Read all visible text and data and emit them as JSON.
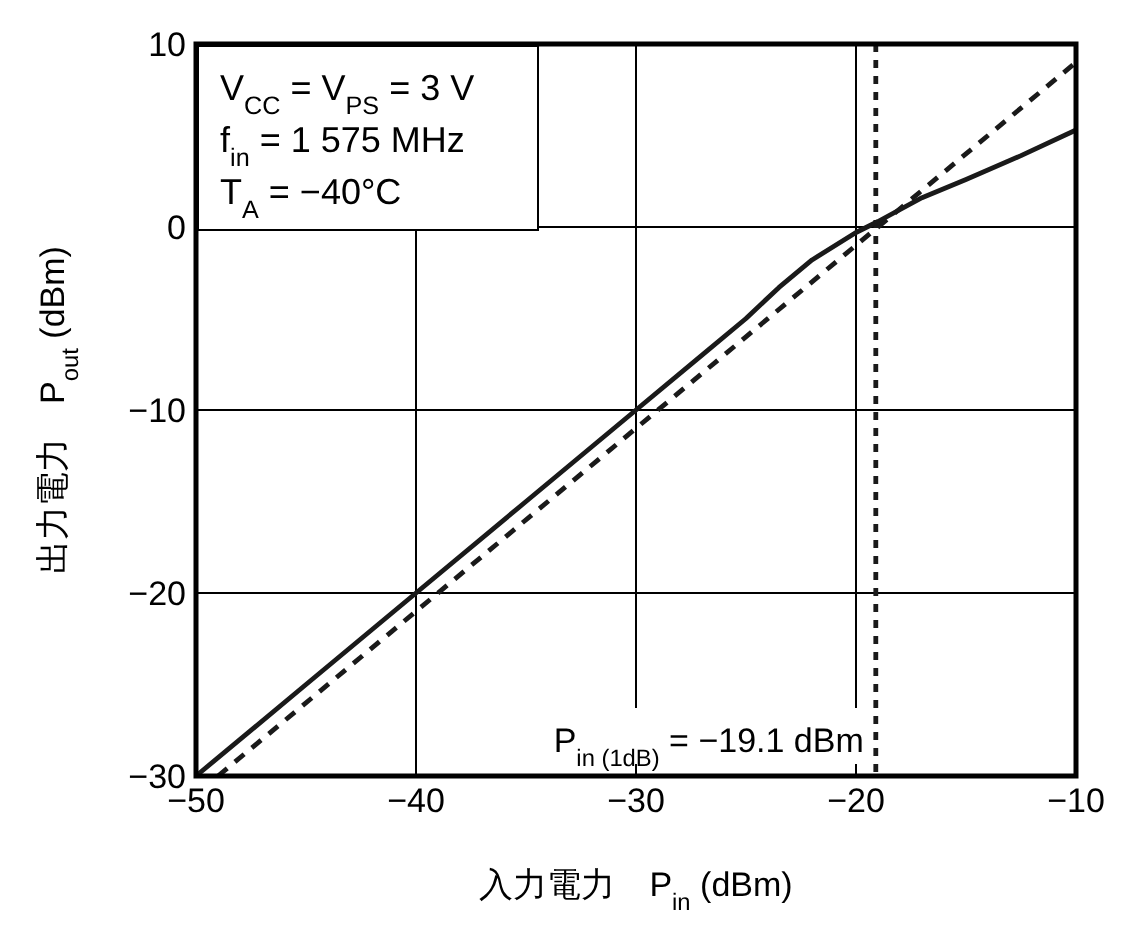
{
  "chart_data": {
    "type": "line",
    "xlabel": "入力電力　P$_{in}$ (dBm)",
    "ylabel": "出力電力　P$_{out}$ (dBm)",
    "xlim": [
      -50,
      -10
    ],
    "ylim": [
      -30,
      10
    ],
    "xticks": [
      -50,
      -40,
      -30,
      -20,
      -10
    ],
    "yticks": [
      -30,
      -20,
      -10,
      0,
      10
    ],
    "grid": true,
    "series": [
      {
        "color": "#1a1a1a",
        "line_style": "solid",
        "x": [
          -50,
          -45,
          -40,
          -35,
          -30,
          -27,
          -25,
          -23.5,
          -22,
          -20,
          -19,
          -17,
          -15,
          -12.5,
          -10
        ],
        "values": [
          -30,
          -25,
          -20,
          -15,
          -10,
          -7,
          -5,
          -3.3,
          -1.8,
          -0.3,
          0.3,
          1.6,
          2.6,
          3.9,
          5.3
        ]
      },
      {
        "color": "#1a1a1a",
        "line_style": "dashed",
        "x": [
          -49,
          -10
        ],
        "values": [
          -30,
          9
        ]
      }
    ],
    "ref_lines": [
      {
        "axis": "x",
        "value": -19.1,
        "label": "P$_{in (1dB)}$ = −19.1 dBm",
        "line_style": "dotted",
        "color": "#1a1a1a"
      }
    ],
    "annotations": [
      "V$_{CC}$ = V$_{PS}$ = 3 V",
      "f$_{in}$ = 1 575 MHz",
      "T$_{A}$ = −40°C"
    ]
  }
}
